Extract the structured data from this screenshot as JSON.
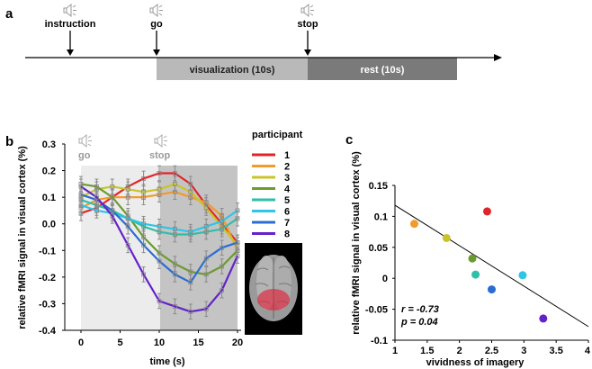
{
  "panel_a": {
    "label": "a",
    "events": [
      {
        "name": "instruction",
        "label": "instruction"
      },
      {
        "name": "go",
        "label": "go"
      },
      {
        "name": "stop",
        "label": "stop"
      }
    ],
    "blocks": [
      {
        "label": "visualization (10s)",
        "color": "#b9b9b9"
      },
      {
        "label": "rest (10s)",
        "color": "#7a7a7a"
      }
    ]
  },
  "panel_b": {
    "label": "b",
    "go_label": "go",
    "stop_label": "stop",
    "legend_title": "participant",
    "chart_data": {
      "type": "line",
      "xlabel": "time (s)",
      "ylabel": "relative fMRI signal in visual cortex (%)",
      "xlim": [
        -2,
        20
      ],
      "ylim": [
        -0.4,
        0.3
      ],
      "xticks": [
        "0",
        "5",
        "10",
        "15",
        "20"
      ],
      "yticks": [
        "0.3",
        "0.2",
        "0.1",
        "0.0",
        "-0.1",
        "-0.2",
        "-0.3",
        "-0.4"
      ],
      "x": [
        0,
        2,
        4,
        6,
        8,
        10,
        12,
        14,
        16,
        18,
        20
      ],
      "series": [
        {
          "name": "1",
          "color": "#e0242a",
          "values": [
            0.04,
            0.06,
            0.1,
            0.14,
            0.17,
            0.19,
            0.19,
            0.15,
            0.07,
            0.0,
            -0.07
          ]
        },
        {
          "name": "2",
          "color": "#f39a2c",
          "values": [
            0.06,
            0.09,
            0.1,
            0.1,
            0.1,
            0.11,
            0.12,
            0.1,
            0.08,
            0.03,
            -0.1
          ]
        },
        {
          "name": "3",
          "color": "#c9c42a",
          "values": [
            0.1,
            0.13,
            0.14,
            0.13,
            0.12,
            0.13,
            0.15,
            0.12,
            0.06,
            -0.01,
            -0.08
          ]
        },
        {
          "name": "4",
          "color": "#6c9b2d",
          "values": [
            0.15,
            0.14,
            0.1,
            0.03,
            -0.05,
            -0.11,
            -0.15,
            -0.18,
            -0.19,
            -0.16,
            -0.1
          ]
        },
        {
          "name": "5",
          "color": "#2fbfa8",
          "values": [
            0.09,
            0.07,
            0.05,
            0.02,
            -0.01,
            -0.03,
            -0.04,
            -0.04,
            -0.03,
            -0.02,
            0.02
          ]
        },
        {
          "name": "6",
          "color": "#2ec5e6",
          "values": [
            0.07,
            0.05,
            0.04,
            0.02,
            0.0,
            -0.01,
            -0.02,
            -0.03,
            -0.01,
            0.01,
            0.05
          ]
        },
        {
          "name": "7",
          "color": "#2a6dd1",
          "values": [
            0.11,
            0.09,
            0.05,
            -0.01,
            -0.08,
            -0.14,
            -0.19,
            -0.22,
            -0.13,
            -0.09,
            -0.07
          ]
        },
        {
          "name": "8",
          "color": "#6322c9",
          "values": [
            0.14,
            0.1,
            0.03,
            -0.08,
            -0.19,
            -0.29,
            -0.31,
            -0.33,
            -0.32,
            -0.25,
            -0.12
          ]
        }
      ]
    }
  },
  "panel_c": {
    "label": "c",
    "stats_r": "r = -0.73",
    "stats_p": "p = 0.04",
    "chart_data": {
      "type": "scatter",
      "xlabel": "vividness of imagery",
      "ylabel": "relative fMRI signal in visual cortex (%)",
      "xlim": [
        1,
        4
      ],
      "ylim": [
        -0.1,
        0.15
      ],
      "xticks": [
        "1",
        "1.5",
        "2",
        "2.5",
        "3",
        "3.5",
        "4"
      ],
      "yticks": [
        "0.15",
        "0.1",
        "0.05",
        "0",
        "-0.05",
        "-0.1"
      ],
      "points": [
        {
          "participant": "1",
          "x": 2.43,
          "y": 0.108,
          "color": "#e0242a"
        },
        {
          "participant": "2",
          "x": 1.3,
          "y": 0.088,
          "color": "#f39a2c"
        },
        {
          "participant": "3",
          "x": 1.8,
          "y": 0.065,
          "color": "#c9c42a"
        },
        {
          "participant": "4",
          "x": 2.2,
          "y": 0.032,
          "color": "#6c9b2d"
        },
        {
          "participant": "5",
          "x": 2.25,
          "y": 0.006,
          "color": "#2fbfa8"
        },
        {
          "participant": "6",
          "x": 2.98,
          "y": 0.005,
          "color": "#2ec5e6"
        },
        {
          "participant": "7",
          "x": 2.5,
          "y": -0.018,
          "color": "#2a6dd1"
        },
        {
          "participant": "8",
          "x": 3.3,
          "y": -0.065,
          "color": "#6322c9"
        }
      ],
      "fit_line": {
        "x": [
          1,
          4
        ],
        "y": [
          0.118,
          -0.078
        ]
      }
    }
  }
}
